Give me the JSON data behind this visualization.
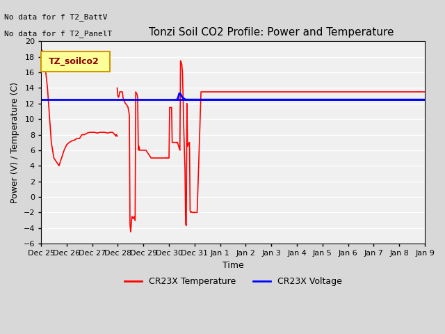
{
  "title": "Tonzi Soil CO2 Profile: Power and Temperature",
  "xlabel": "Time",
  "ylabel": "Power (V) / Temperature (C)",
  "ylim": [
    -6,
    20
  ],
  "yticks": [
    -6,
    -4,
    -2,
    0,
    2,
    4,
    6,
    8,
    10,
    12,
    14,
    16,
    18,
    20
  ],
  "bg_color": "#d8d8d8",
  "plot_bg": "#f0f0f0",
  "annotations": [
    "No data for f T2_BattV",
    "No data for f T2_PanelT"
  ],
  "legend_box_label": "TZ_soilco2",
  "legend_box_color": "#ffff99",
  "legend_box_border": "#cc9900",
  "legend_label_color": "#8b0000",
  "red_color": "#ff0000",
  "blue_color": "#0000ff",
  "red_label": "CR23X Temperature",
  "blue_label": "CR23X Voltage",
  "tick_dates": [
    "Dec 25",
    "Dec 26",
    "Dec 27",
    "Dec 28",
    "Dec 29",
    "Dec 30",
    "Dec 31",
    "Jan 1",
    "Jan 2",
    "Jan 3",
    "Jan 4",
    "Jan 5",
    "Jan 6",
    "Jan 7",
    "Jan 8",
    "Jan 9"
  ],
  "red_segments": [
    {
      "x": [
        0,
        0.02,
        0.05,
        0.08,
        0.1,
        0.12,
        0.14,
        0.16,
        0.18,
        0.2,
        0.22,
        0.24,
        0.26,
        0.28,
        0.3,
        0.32,
        0.34,
        0.36,
        0.38,
        0.4,
        0.42,
        0.44,
        0.46,
        0.48,
        0.5,
        0.52,
        0.54,
        0.56,
        0.575,
        0.58,
        0.585,
        0.59,
        0.595
      ],
      "y": [
        19,
        18.5,
        14,
        7,
        5,
        4.5,
        4,
        5,
        6,
        6.7,
        7,
        7.2,
        7.3,
        7.5,
        7.5,
        8,
        8,
        8.2,
        8.3,
        8.3,
        8.3,
        8.2,
        8.3,
        8.3,
        8.3,
        8.2,
        8.3,
        8.3,
        8,
        8,
        7.8,
        8,
        7.8
      ]
    },
    {
      "x": [
        0.595,
        0.6,
        0.605,
        0.61,
        0.615,
        0.62,
        0.625,
        0.63,
        0.635,
        0.64,
        0.645,
        0.65,
        0.66,
        0.67,
        0.68,
        0.685,
        0.69,
        0.695,
        0.7,
        0.71,
        0.72,
        0.73,
        0.735
      ],
      "y": [
        14,
        13,
        12.8,
        13,
        13.5,
        13.5,
        13.5,
        13.5,
        13.5,
        12.8,
        12.5,
        12.3,
        12,
        11.8,
        11.5,
        11,
        10.5,
        -3.5,
        -4.5,
        -2.5,
        -2.8,
        -2.5,
        -3
      ]
    },
    {
      "x": [
        0.735,
        0.74,
        0.745,
        0.75,
        0.755,
        0.76,
        0.765,
        0.77,
        0.78,
        0.79,
        0.8,
        0.82,
        0.84,
        0.86,
        0.88,
        0.9,
        0.92,
        0.94,
        0.96,
        0.97,
        0.975,
        0.98
      ],
      "y": [
        -3,
        13.5,
        13.3,
        13.2,
        12.8,
        6,
        6.5,
        6,
        6,
        6,
        6,
        6,
        5.5,
        5,
        5,
        5,
        5,
        5,
        5,
        5,
        5,
        5
      ]
    },
    {
      "x": [
        0.98,
        0.985,
        0.99,
        0.995,
        1.0,
        1.005,
        1.01,
        1.015,
        1.02,
        1.025,
        1.03,
        1.04,
        1.05,
        1.06
      ],
      "y": [
        5,
        5,
        5,
        5,
        5,
        11.5,
        11.5,
        11.5,
        11.5,
        7,
        7,
        7,
        7,
        7
      ]
    },
    {
      "x": [
        1.06,
        1.065,
        1.07,
        1.075,
        1.08,
        1.085,
        1.09,
        1.095,
        1.1,
        1.105,
        1.11,
        1.115,
        1.12,
        1.125,
        1.13,
        1.135,
        1.14,
        1.145,
        1.15,
        1.155,
        1.16,
        1.165,
        1.17,
        1.175,
        1.18,
        1.185,
        1.19,
        1.195,
        1.2
      ],
      "y": [
        7,
        7,
        6.8,
        6.5,
        6.3,
        6,
        17.5,
        17.3,
        17,
        16,
        13,
        9,
        6,
        3.5,
        -3.5,
        -3.7,
        12,
        6.5,
        6.8,
        6.8,
        7,
        -1.8,
        -2,
        -1.9,
        -2,
        -2,
        -2,
        -2,
        -2
      ]
    },
    {
      "x": [
        1.2,
        1.22,
        1.25,
        1.3,
        1.35,
        1.4,
        1.45,
        1.5,
        1.55,
        1.6,
        1.65,
        1.7,
        1.75,
        1.8,
        1.85,
        1.9,
        1.95,
        2.0,
        2.05,
        2.1,
        2.15,
        2.2,
        2.25,
        2.3,
        2.35,
        2.4,
        2.45,
        2.5,
        2.55,
        2.6,
        2.65,
        2.7,
        2.75,
        2.8,
        2.85,
        2.9,
        2.95,
        3.0
      ],
      "y": [
        -2,
        -2,
        13.5,
        13.5,
        13.5,
        13.5,
        13.5,
        13.5,
        13.5,
        13.5,
        13.5,
        13.5,
        13.5,
        13.5,
        13.5,
        13.5,
        13.5,
        13.5,
        13.5,
        13.5,
        13.5,
        13.5,
        13.5,
        13.5,
        13.5,
        13.5,
        13.5,
        13.5,
        13.5,
        13.5,
        13.5,
        13.5,
        13.5,
        13.5,
        13.5,
        13.5,
        13.5,
        13.5
      ]
    }
  ],
  "blue_segments": [
    {
      "x": [
        0,
        0.5,
        0.9,
        0.95,
        1.0,
        1.01,
        1.02,
        1.03,
        1.04,
        1.05,
        1.06,
        1.07,
        1.08,
        1.09,
        1.1,
        1.12,
        1.15,
        1.2,
        1.25,
        1.3,
        1.5,
        2.0,
        2.5,
        3.0
      ],
      "y": [
        12.5,
        12.5,
        12.5,
        12.5,
        12.5,
        12.5,
        12.5,
        12.5,
        12.5,
        12.5,
        12.5,
        12.5,
        12.5,
        12.5,
        12.5,
        12.5,
        12.5,
        12.5,
        12.5,
        12.5,
        12.5,
        12.5,
        12.5,
        12.5
      ]
    },
    {
      "x": [
        1.06,
        1.065,
        1.07,
        1.075,
        1.08,
        1.085,
        1.09,
        1.095,
        1.1,
        1.11,
        1.12,
        1.13,
        1.15,
        1.2,
        1.25,
        1.3,
        1.5,
        2.0,
        2.5,
        3.0
      ],
      "y": [
        12.5,
        12.5,
        12.7,
        13.0,
        13.3,
        13.3,
        13.2,
        13.1,
        12.9,
        12.7,
        12.6,
        12.5,
        12.5,
        12.5,
        12.5,
        12.5,
        12.5,
        12.5,
        12.5,
        12.5
      ]
    }
  ],
  "xmin": 0,
  "xmax": 3.0
}
